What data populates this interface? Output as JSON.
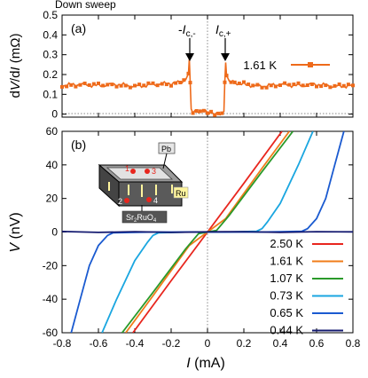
{
  "header": {
    "title": "Down sweep"
  },
  "top_panel": {
    "panel_label": "(a)",
    "ylabel_parts": [
      "d",
      "V",
      "/d",
      "I",
      " (mΩ)"
    ],
    "annotations": {
      "left_sign": "-",
      "left_I": "I",
      "left_sub": "c,-",
      "right_I": "I",
      "right_sub": "c,+"
    },
    "legend_label": "1.61 K"
  },
  "bottom_panel": {
    "panel_label": "(b)",
    "ylabel": "V",
    "ylabel_unit": " (nV)",
    "xlabel": "I",
    "xlabel_unit": " (mA)"
  },
  "inset": {
    "top_label": "Pb",
    "side_label": "Ru",
    "bottom_label_main": "Sr",
    "bottom_label_sub1": "2",
    "bottom_label_mid": "RuO",
    "bottom_label_sub2": "4",
    "numbers": [
      "1",
      "2",
      "3",
      "4"
    ]
  },
  "chart_data": [
    {
      "type": "line",
      "title": "",
      "xlabel": "",
      "ylabel": "dV/dI (mΩ)",
      "xlim": [
        -0.8,
        0.8
      ],
      "ylim": [
        0,
        0.5
      ],
      "yticks": [
        0,
        0.1,
        0.2,
        0.3,
        0.4,
        0.5
      ],
      "tick_labels_y": [
        "0",
        "0.1",
        "0.2",
        "0.3",
        "0.4",
        "0.5"
      ],
      "series": [
        {
          "name": "1.61 K",
          "color": "#ee6a1a",
          "x": [
            -0.8,
            -0.7,
            -0.6,
            -0.5,
            -0.4,
            -0.3,
            -0.2,
            -0.15,
            -0.12,
            -0.105,
            -0.1,
            -0.095,
            -0.09,
            -0.08,
            -0.06,
            -0.04,
            -0.02,
            0,
            0.02,
            0.04,
            0.06,
            0.08,
            0.09,
            0.095,
            0.1,
            0.105,
            0.12,
            0.15,
            0.2,
            0.3,
            0.4,
            0.5,
            0.6,
            0.7,
            0.8
          ],
          "y": [
            0.145,
            0.15,
            0.145,
            0.15,
            0.14,
            0.15,
            0.155,
            0.16,
            0.17,
            0.2,
            0.27,
            0.16,
            0.02,
            0.005,
            0.01,
            0.005,
            0.02,
            0.005,
            0.01,
            0.005,
            0.01,
            0.005,
            0.02,
            0.16,
            0.27,
            0.2,
            0.17,
            0.16,
            0.15,
            0.14,
            0.15,
            0.145,
            0.15,
            0.14,
            0.145
          ]
        }
      ]
    },
    {
      "type": "line",
      "title": "",
      "xlabel": "I (mA)",
      "ylabel": "V (nV)",
      "xlim": [
        -0.8,
        0.8
      ],
      "ylim": [
        -60,
        60
      ],
      "xticks": [
        -0.8,
        -0.6,
        -0.4,
        -0.2,
        0,
        0.2,
        0.4,
        0.6,
        0.8
      ],
      "tick_labels_x": [
        "-0.8",
        "-0.6",
        "-0.4",
        "-0.2",
        "0",
        "0.2",
        "0.4",
        "0.6",
        "0.8"
      ],
      "yticks": [
        -60,
        -40,
        -20,
        0,
        20,
        40,
        60
      ],
      "tick_labels_y": [
        "-60",
        "-40",
        "-20",
        "0",
        "20",
        "40",
        "60"
      ],
      "legend_position": "bottom-right",
      "series": [
        {
          "name": "2.50 K",
          "color": "#e8261e",
          "x": [
            -0.41,
            -0.2,
            0.0,
            0.2,
            0.41
          ],
          "y": [
            -60,
            -29,
            0,
            29,
            60
          ]
        },
        {
          "name": "1.61 K",
          "color": "#f07c1a",
          "x": [
            -0.45,
            -0.3,
            -0.1,
            0.0,
            0.1,
            0.3,
            0.45
          ],
          "y": [
            -60,
            -38,
            -8,
            0,
            8,
            38,
            60
          ]
        },
        {
          "name": "1.07 K",
          "color": "#2a9a2a",
          "x": [
            -0.47,
            -0.3,
            -0.12,
            -0.05,
            0.0,
            0.05,
            0.12,
            0.3,
            0.47
          ],
          "y": [
            -60,
            -36,
            -10,
            -1,
            0,
            1,
            10,
            36,
            60
          ]
        },
        {
          "name": "0.73 K",
          "color": "#1aa6e0",
          "x": [
            -0.58,
            -0.5,
            -0.4,
            -0.33,
            -0.3,
            -0.27,
            -0.1,
            0.0,
            0.1,
            0.27,
            0.3,
            0.33,
            0.4,
            0.5,
            0.58
          ],
          "y": [
            -60,
            -40,
            -17,
            -6,
            -2,
            -0.5,
            0,
            0,
            0,
            0.5,
            2,
            6,
            17,
            40,
            60
          ]
        },
        {
          "name": "0.65 K",
          "color": "#1a5ad0",
          "x": [
            -0.75,
            -0.7,
            -0.65,
            -0.6,
            -0.55,
            -0.52,
            -0.3,
            0.0,
            0.3,
            0.52,
            0.55,
            0.6,
            0.65,
            0.7,
            0.75
          ],
          "y": [
            -60,
            -40,
            -20,
            -8,
            -2,
            -0.5,
            0,
            0,
            0,
            0.5,
            2,
            8,
            20,
            40,
            60
          ]
        },
        {
          "name": "0.44 K",
          "color": "#141a70",
          "x": [
            -0.8,
            -0.6,
            -0.4,
            -0.2,
            0.0,
            0.2,
            0.4,
            0.6,
            0.8
          ],
          "y": [
            0.3,
            -0.2,
            0.2,
            -0.2,
            0.1,
            0.2,
            -0.2,
            0.2,
            0.1
          ]
        }
      ]
    }
  ]
}
